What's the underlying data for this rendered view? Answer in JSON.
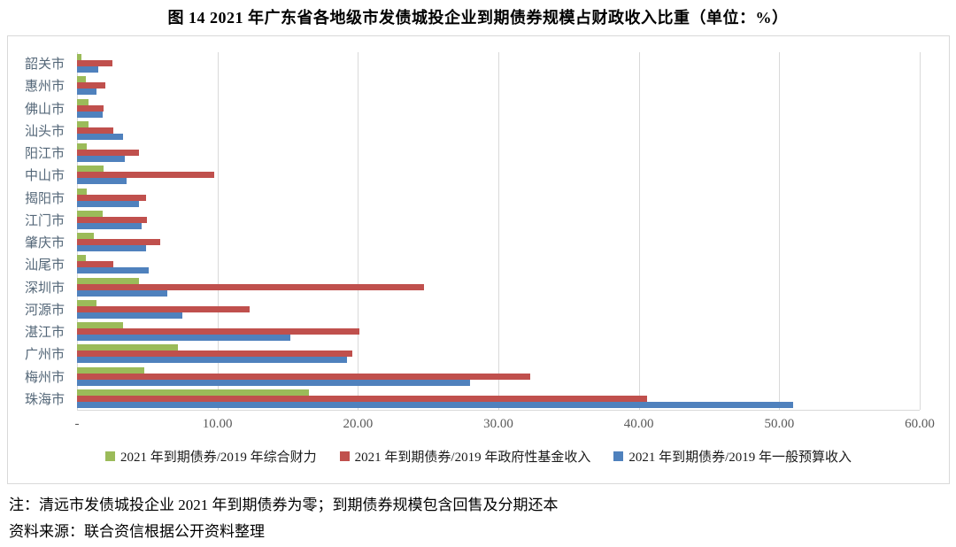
{
  "title": "图 14  2021 年广东省各地级市发债城投企业到期债券规模占财政收入比重（单位：%）",
  "chart_data": {
    "type": "bar",
    "orientation": "horizontal",
    "title": "图 14  2021 年广东省各地级市发债城投企业到期债券规模占财政收入比重（单位：%）",
    "xlabel": "",
    "ylabel": "",
    "xlim": [
      0,
      60
    ],
    "x_ticks": [
      "-",
      "10.00",
      "20.00",
      "30.00",
      "40.00",
      "50.00",
      "60.00"
    ],
    "grid": true,
    "legend_position": "bottom",
    "categories": [
      "韶关市",
      "惠州市",
      "佛山市",
      "汕头市",
      "阳江市",
      "中山市",
      "揭阳市",
      "江门市",
      "肇庆市",
      "汕尾市",
      "深圳市",
      "河源市",
      "湛江市",
      "广州市",
      "梅州市",
      "珠海市"
    ],
    "series": [
      {
        "name": "2021 年到期债券/2019 年综合财力",
        "color": "#9BBB59",
        "values": [
          0.3,
          0.6,
          0.8,
          0.8,
          0.7,
          1.9,
          0.7,
          1.8,
          1.2,
          0.6,
          4.4,
          1.4,
          3.3,
          7.2,
          4.8,
          16.5
        ]
      },
      {
        "name": "2021 年到期债券/2019 年政府性基金收入",
        "color": "#C0504D",
        "values": [
          2.5,
          2.0,
          1.9,
          2.6,
          4.4,
          9.8,
          4.9,
          5.0,
          5.9,
          2.6,
          24.7,
          12.3,
          20.1,
          19.6,
          32.3,
          40.6
        ]
      },
      {
        "name": "2021 年到期债券/2019 年一般预算收入",
        "color": "#4F81BD",
        "values": [
          1.5,
          1.4,
          1.8,
          3.3,
          3.4,
          3.5,
          4.4,
          4.6,
          4.9,
          5.1,
          6.4,
          7.5,
          15.2,
          19.2,
          28.0,
          51.0
        ]
      }
    ]
  },
  "notes": {
    "note1": "注：清远市发债城投企业 2021 年到期债券为零；到期债券规模包含回售及分期还本",
    "note2": "资料来源：联合资信根据公开资料整理"
  }
}
